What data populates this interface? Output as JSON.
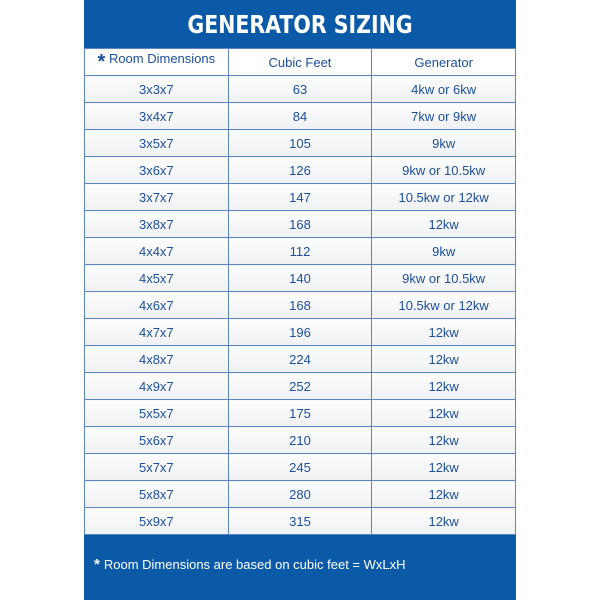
{
  "title": "GENERATOR SIZING",
  "header": {
    "star": "*",
    "col1": "Room Dimensions",
    "col2": "Cubic Feet",
    "col3": "Generator"
  },
  "rows": [
    [
      "3x3x7",
      "63",
      "4kw or 6kw"
    ],
    [
      "3x4x7",
      "84",
      "7kw or 9kw"
    ],
    [
      "3x5x7",
      "105",
      "9kw"
    ],
    [
      "3x6x7",
      "126",
      "9kw or 10.5kw"
    ],
    [
      "3x7x7",
      "147",
      "10.5kw or 12kw"
    ],
    [
      "3x8x7",
      "168",
      "12kw"
    ],
    [
      "4x4x7",
      "112",
      "9kw"
    ],
    [
      "4x5x7",
      "140",
      "9kw or 10.5kw"
    ],
    [
      "4x6x7",
      "168",
      "10.5kw or 12kw"
    ],
    [
      "4x7x7",
      "196",
      "12kw"
    ],
    [
      "4x8x7",
      "224",
      "12kw"
    ],
    [
      "4x9x7",
      "252",
      "12kw"
    ],
    [
      "5x5x7",
      "175",
      "12kw"
    ],
    [
      "5x6x7",
      "210",
      "12kw"
    ],
    [
      "5x7x7",
      "245",
      "12kw"
    ],
    [
      "5x8x7",
      "280",
      "12kw"
    ],
    [
      "5x9x7",
      "315",
      "12kw"
    ]
  ],
  "footnote": {
    "star": "*",
    "text": "Room Dimensions are based on cubic feet = WxLxH"
  },
  "colors": {
    "brand_blue": "#0b5aa8",
    "text_blue": "#1b4f98"
  }
}
